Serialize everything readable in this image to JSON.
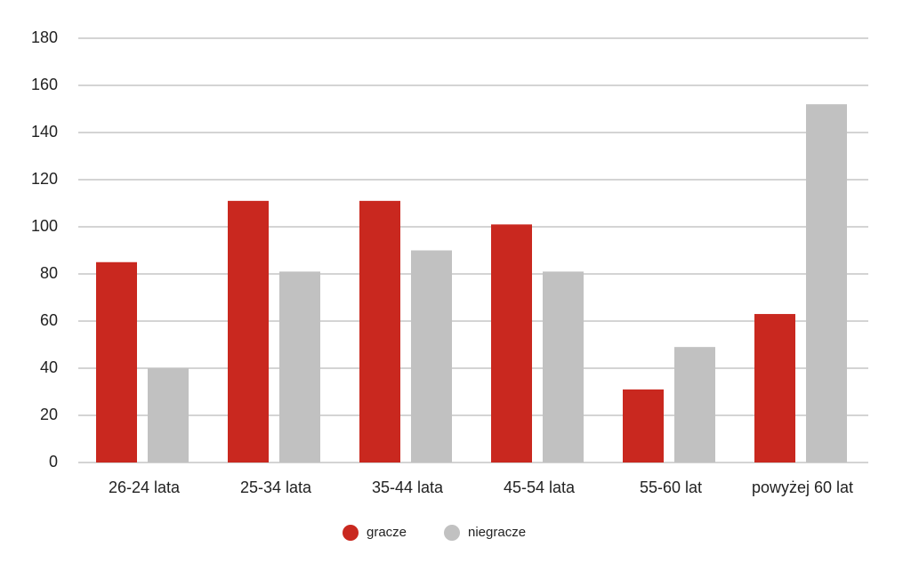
{
  "chart_data": {
    "type": "bar",
    "categories": [
      "26-24 lata",
      "25-34 lata",
      "35-44 lata",
      "45-54 lata",
      "55-60 lat",
      "powyżej 60 lat"
    ],
    "series": [
      {
        "name": "gracze",
        "color": "#c9281f",
        "values": [
          85,
          111,
          111,
          101,
          31,
          63
        ]
      },
      {
        "name": "niegracze",
        "color": "#c1c1c1",
        "values": [
          40,
          81,
          90,
          81,
          49,
          152
        ]
      }
    ],
    "ylim": [
      0,
      180
    ],
    "yticks": [
      0,
      20,
      40,
      60,
      80,
      100,
      120,
      140,
      160,
      180
    ],
    "grid": true,
    "legend": "bottom"
  }
}
